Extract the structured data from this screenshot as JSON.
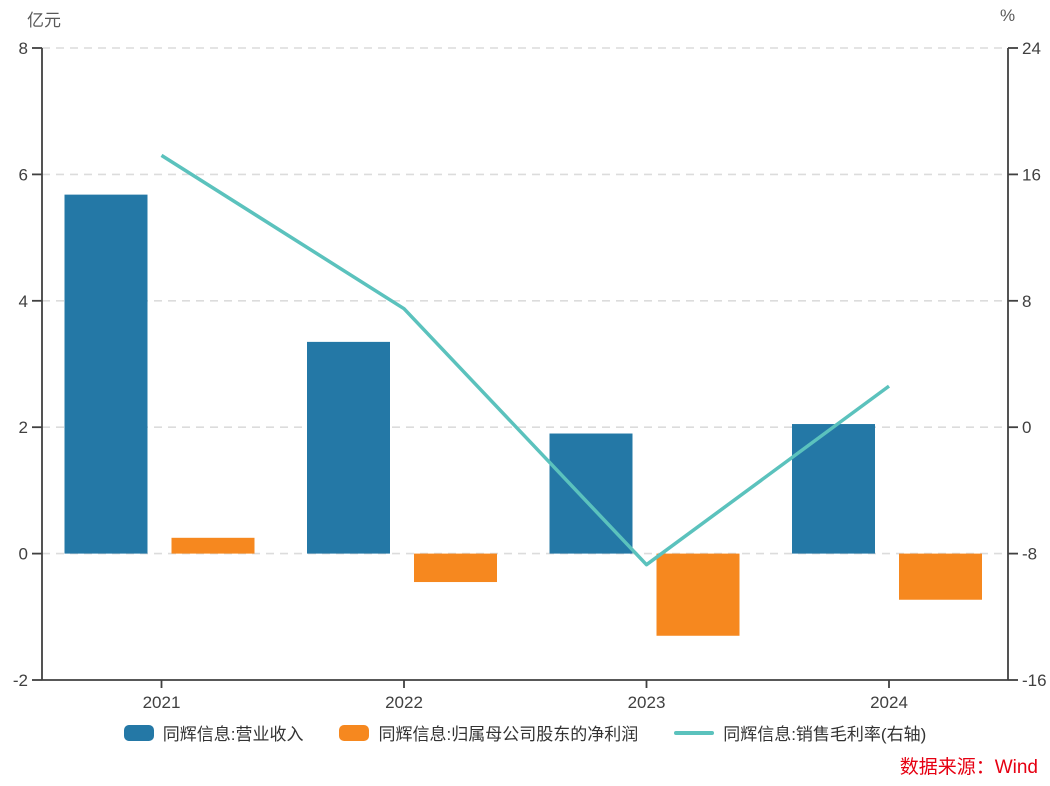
{
  "chart_data": {
    "type": "combo",
    "categories": [
      "2021",
      "2022",
      "2023",
      "2024"
    ],
    "series": [
      {
        "id": "revenue",
        "name": "同辉信息:营业收入",
        "type": "bar",
        "axis": "left",
        "color": "#2478A6",
        "values": [
          5.68,
          3.35,
          1.9,
          2.05
        ]
      },
      {
        "id": "net-profit",
        "name": "同辉信息:归属母公司股东的净利润",
        "type": "bar",
        "axis": "left",
        "color": "#F6881F",
        "values": [
          0.25,
          -0.45,
          -1.3,
          -0.73
        ]
      },
      {
        "id": "gross-margin",
        "name": "同辉信息:销售毛利率(右轴)",
        "type": "line",
        "axis": "right",
        "color": "#5BC2BD",
        "values": [
          17.2,
          7.5,
          -8.7,
          2.6
        ]
      }
    ],
    "left_axis": {
      "label": "亿元",
      "min": -2,
      "max": 8,
      "ticks": [
        8,
        6,
        4,
        2,
        0,
        -2
      ]
    },
    "right_axis": {
      "label": "%",
      "min": -16,
      "max": 24,
      "ticks": [
        24,
        16,
        8,
        0,
        -8,
        -16
      ]
    },
    "grid": "horizontal dashed, light gray",
    "legend_position": "bottom",
    "title": ""
  },
  "source": {
    "label": "数据来源：Wind",
    "color": "#E60012"
  },
  "style_colors": {
    "axis": "#404040",
    "gridline": "#DCDCDC",
    "tick_text": "#404040"
  }
}
